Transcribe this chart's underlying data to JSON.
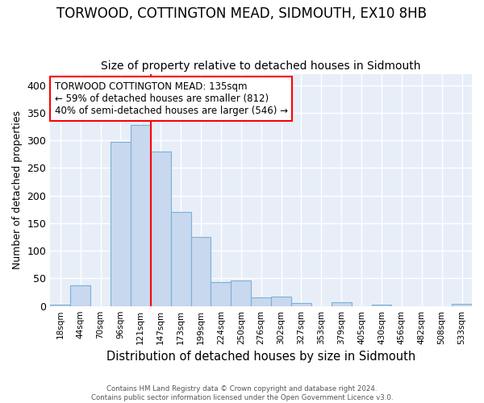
{
  "title1": "TORWOOD, COTTINGTON MEAD, SIDMOUTH, EX10 8HB",
  "title2": "Size of property relative to detached houses in Sidmouth",
  "xlabel": "Distribution of detached houses by size in Sidmouth",
  "ylabel": "Number of detached properties",
  "footer1": "Contains HM Land Registry data © Crown copyright and database right 2024.",
  "footer2": "Contains public sector information licensed under the Open Government Licence v3.0.",
  "bin_labels": [
    "18sqm",
    "44sqm",
    "70sqm",
    "96sqm",
    "121sqm",
    "147sqm",
    "173sqm",
    "199sqm",
    "224sqm",
    "250sqm",
    "276sqm",
    "302sqm",
    "327sqm",
    "353sqm",
    "379sqm",
    "405sqm",
    "430sqm",
    "456sqm",
    "482sqm",
    "508sqm",
    "533sqm"
  ],
  "bar_values": [
    3,
    37,
    0,
    297,
    328,
    280,
    170,
    125,
    43,
    46,
    16,
    17,
    5,
    0,
    7,
    0,
    2,
    0,
    0,
    0,
    4
  ],
  "bar_color": "#c8d8ee",
  "bar_edgecolor": "#7ab0d8",
  "vline_x_idx": 5,
  "vline_color": "red",
  "annotation_text": "TORWOOD COTTINGTON MEAD: 135sqm\n← 59% of detached houses are smaller (812)\n40% of semi-detached houses are larger (546) →",
  "annotation_box_color": "white",
  "annotation_box_edgecolor": "red",
  "ylim": [
    0,
    420
  ],
  "yticks": [
    0,
    50,
    100,
    150,
    200,
    250,
    300,
    350,
    400
  ],
  "background_color": "#ffffff",
  "plot_background": "#e8eef8",
  "grid_color": "white",
  "title1_fontsize": 12,
  "title2_fontsize": 10,
  "xlabel_fontsize": 10.5,
  "ylabel_fontsize": 9
}
